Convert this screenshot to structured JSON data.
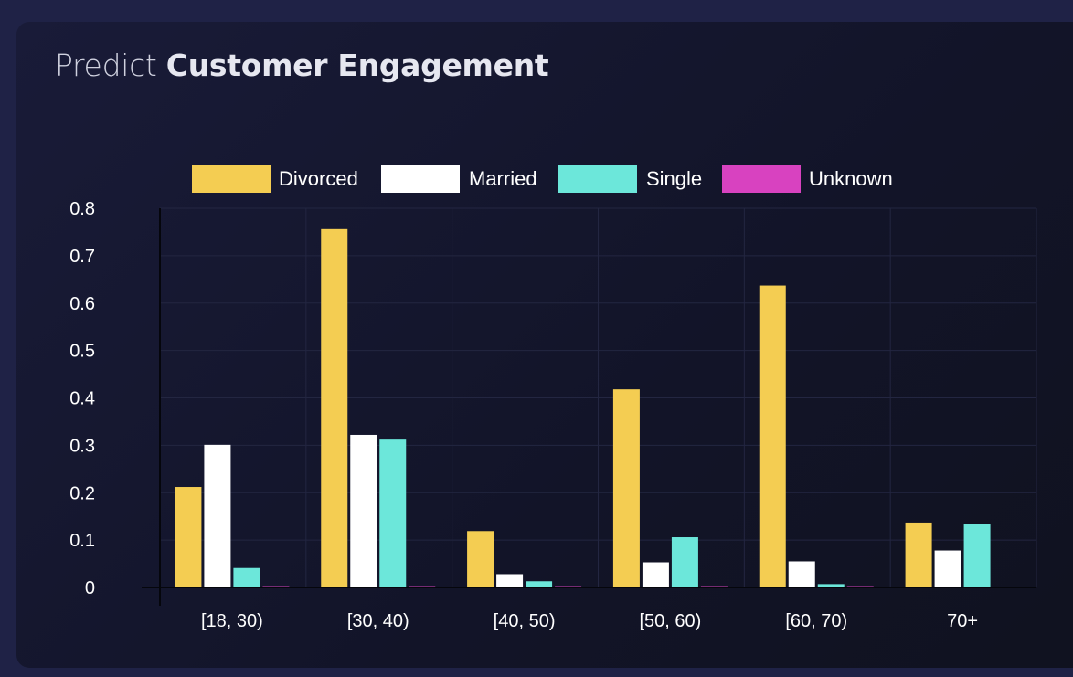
{
  "header": {
    "title_light": "Predict",
    "title_bold": "Customer Engagement"
  },
  "colors": {
    "Divorced": "#f4cd52",
    "Married": "#ffffff",
    "Single": "#6ce7da",
    "Unknown": "#d842c0",
    "grid": "#232641",
    "axis": "#05060c"
  },
  "chart_data": {
    "type": "bar",
    "title": "",
    "xlabel": "",
    "ylabel": "",
    "ylim": [
      0,
      0.8
    ],
    "yticks": [
      "0.8",
      "0.7",
      "0.6",
      "0.5",
      "0.4",
      "0.3",
      "0.2",
      "0.1",
      "0"
    ],
    "grid": true,
    "legend_position": "top-center",
    "categories": [
      "[18, 30)",
      "[30, 40)",
      "[40, 50)",
      "[50, 60)",
      "[60, 70)",
      "70+"
    ],
    "series": [
      {
        "name": "Divorced",
        "values": [
          0.212,
          0.756,
          0.119,
          0.418,
          0.637,
          0.137
        ]
      },
      {
        "name": "Married",
        "values": [
          0.301,
          0.322,
          0.028,
          0.053,
          0.055,
          0.078
        ]
      },
      {
        "name": "Single",
        "values": [
          0.041,
          0.312,
          0.013,
          0.106,
          0.007,
          0.133
        ]
      },
      {
        "name": "Unknown",
        "values": [
          0.002,
          0.002,
          0.002,
          0.002,
          0.002,
          0.0
        ]
      }
    ]
  }
}
